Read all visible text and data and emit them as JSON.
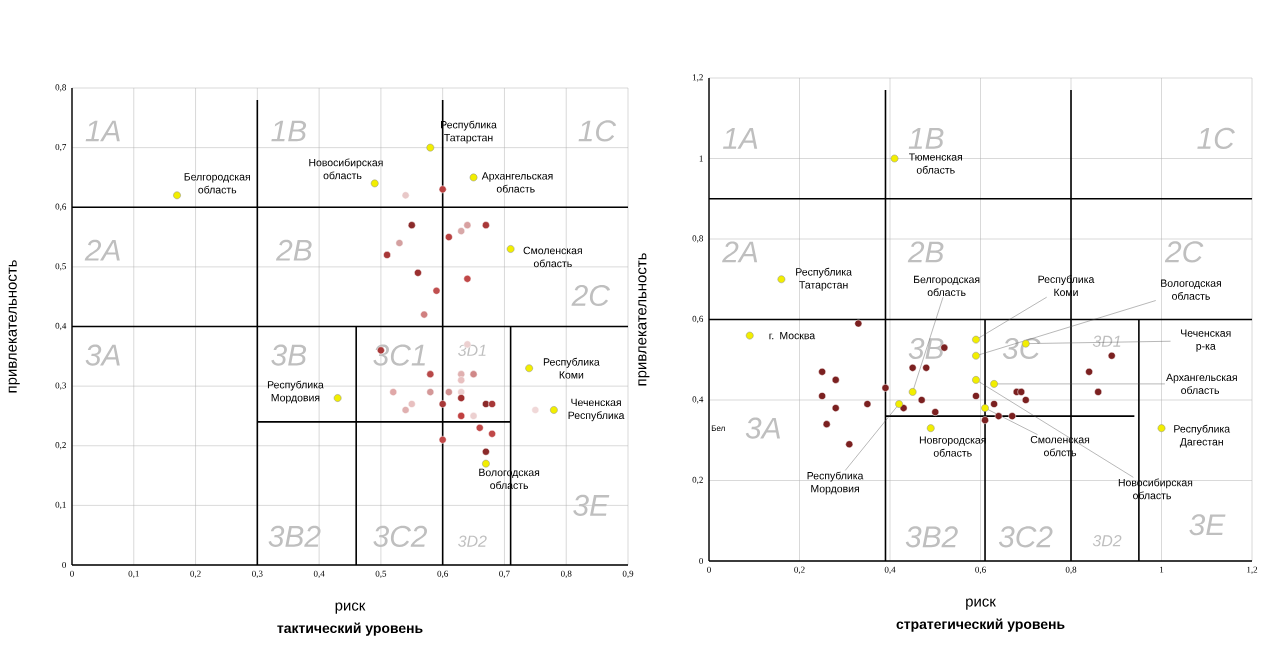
{
  "chart_data": [
    {
      "type": "scatter",
      "title": "тактический уровень",
      "xlabel": "риск",
      "ylabel": "привлекательность",
      "xlim": [
        0,
        0.9
      ],
      "ylim": [
        0,
        0.8
      ],
      "xticks": [
        0,
        {
          "value": 0.1,
          "label": "0,1"
        },
        {
          "value": 0.2,
          "label": "0,2"
        },
        {
          "value": 0.3,
          "label": "0,3"
        },
        {
          "value": 0.4,
          "label": "0,4"
        },
        {
          "value": 0.5,
          "label": "0,5"
        },
        {
          "value": 0.6,
          "label": "0,6"
        },
        {
          "value": 0.7,
          "label": "0,7"
        },
        {
          "value": 0.8,
          "label": "0,8"
        },
        {
          "value": 0.9,
          "label": "0,9"
        }
      ],
      "yticks": [
        0,
        {
          "value": 0.1,
          "label": "0,1"
        },
        {
          "value": 0.2,
          "label": "0,2"
        },
        {
          "value": 0.3,
          "label": "0,3"
        },
        {
          "value": 0.4,
          "label": "0,4"
        },
        {
          "value": 0.5,
          "label": "0,5"
        },
        {
          "value": 0.6,
          "label": "0,6"
        },
        {
          "value": 0.7,
          "label": "0,7"
        },
        {
          "value": 0.8,
          "label": "0,8"
        }
      ],
      "grid": true,
      "marker": "circle",
      "series": [
        {
          "x": [
            0.54,
            0.6,
            0.55,
            0.67,
            0.64,
            0.63,
            0.61,
            0.53,
            0.51,
            0.56,
            0.64,
            0.59,
            0.57,
            0.5,
            0.64,
            0.58,
            0.63,
            0.65,
            0.63,
            0.52,
            0.58,
            0.61,
            0.63,
            0.63,
            0.6,
            0.55,
            0.54,
            0.67,
            0.68,
            0.63,
            0.65,
            0.66,
            0.68,
            0.6,
            0.67,
            0.75
          ],
          "values": [
            0.62,
            0.63,
            0.57,
            0.57,
            0.57,
            0.56,
            0.55,
            0.54,
            0.52,
            0.49,
            0.48,
            0.46,
            0.42,
            0.36,
            0.37,
            0.32,
            0.32,
            0.32,
            0.31,
            0.29,
            0.29,
            0.29,
            0.29,
            0.28,
            0.27,
            0.27,
            0.26,
            0.27,
            0.27,
            0.25,
            0.25,
            0.23,
            0.22,
            0.21,
            0.19,
            0.26
          ],
          "colors": [
            "#e8c8c8",
            "#b84040",
            "#8b2a2a",
            "#a83838",
            "#d8a0a0",
            "#d8a8a8",
            "#b84040",
            "#d4a0a0",
            "#a83838",
            "#9b3030",
            "#c04848",
            "#c05050",
            "#d08080",
            "#a83838",
            "#ecd0d0",
            "#b84848",
            "#e0b0b0",
            "#d08888",
            "#e8c0c0",
            "#e0a8a8",
            "#d49898",
            "#d09090",
            "#ecd0d0",
            "#a03030",
            "#a83838",
            "#e8c0c0",
            "#e0b0b0",
            "#8b2a2a",
            "#a83838",
            "#c04040",
            "#ecd0d0",
            "#c04848",
            "#c04848",
            "#c04848",
            "#8b2a2a",
            "#f0d8d8"
          ]
        },
        {
          "color": "#f2ee00",
          "x": [
            0.17,
            0.49,
            0.58,
            0.65,
            0.71,
            0.74,
            0.78,
            0.43,
            0.67
          ],
          "values": [
            0.62,
            0.64,
            0.7,
            0.65,
            0.53,
            0.33,
            0.26,
            0.28,
            0.17
          ]
        },
        {
          "type": "line",
          "color": "#000000",
          "marker": "none",
          "x": [
            0.3,
            0.3
          ],
          "values": [
            0,
            0.78
          ]
        },
        {
          "type": "line",
          "color": "#000000",
          "marker": "none",
          "x": [
            0.6,
            0.6
          ],
          "values": [
            0,
            0.78
          ]
        },
        {
          "type": "line",
          "color": "#000000",
          "marker": "none",
          "x": [
            0,
            0.9
          ],
          "values": [
            0.6,
            0.6
          ]
        },
        {
          "type": "line",
          "color": "#000000",
          "marker": "none",
          "x": [
            0,
            0.9
          ],
          "values": [
            0.4,
            0.4
          ]
        },
        {
          "type": "line",
          "color": "#000000",
          "marker": "none",
          "x": [
            0.46,
            0.46
          ],
          "values": [
            0,
            0.4
          ]
        },
        {
          "type": "line",
          "color": "#000000",
          "marker": "none",
          "x": [
            0.71,
            0.71
          ],
          "values": [
            0,
            0.4
          ]
        },
        {
          "type": "line",
          "color": "#000000",
          "marker": "none",
          "x": [
            0.3,
            0.71
          ],
          "values": [
            0.24,
            0.24
          ]
        }
      ],
      "annotations": [
        "1A",
        "1B",
        "1C",
        "2A",
        "2B",
        "2C",
        "3A",
        "3B",
        "3C1",
        "3D1",
        "3B2",
        "3C2",
        "3D2",
        "3E",
        {
          "text": "Белгородская область",
          "x": 0.17,
          "y": 0.62
        },
        {
          "text": "Новосибирская область",
          "x": 0.49,
          "y": 0.64
        },
        {
          "text": "Республика Татарстан",
          "x": 0.58,
          "y": 0.7
        },
        {
          "text": "Архангельская область",
          "x": 0.65,
          "y": 0.65
        },
        {
          "text": "Смоленская область",
          "x": 0.71,
          "y": 0.53
        },
        {
          "text": "Республика Коми",
          "x": 0.74,
          "y": 0.33
        },
        {
          "text": "Чеченская Республика",
          "x": 0.78,
          "y": 0.26
        },
        {
          "text": "Республика Мордовия",
          "x": 0.43,
          "y": 0.28
        },
        {
          "text": "Вологодская область",
          "x": 0.67,
          "y": 0.17
        }
      ]
    },
    {
      "type": "scatter",
      "title": "стратегический уровень",
      "xlabel": "риск",
      "ylabel": "привлекательность",
      "xlim": [
        0,
        1.2
      ],
      "ylim": [
        0,
        1.2
      ],
      "xticks": [
        0,
        {
          "value": 0.2,
          "label": "0,2"
        },
        {
          "value": 0.4,
          "label": "0,4"
        },
        {
          "value": 0.6,
          "label": "0,6"
        },
        {
          "value": 0.8,
          "label": "0,8"
        },
        1,
        {
          "value": 1.2,
          "label": "1,2"
        }
      ],
      "yticks": [
        0,
        {
          "value": 0.2,
          "label": "0,2"
        },
        {
          "value": 0.4,
          "label": "0,4"
        },
        {
          "value": 0.6,
          "label": "0,6"
        },
        {
          "value": 0.8,
          "label": "0,8"
        },
        1,
        {
          "value": 1.2,
          "label": "1,2"
        }
      ],
      "grid": true,
      "marker": "circle",
      "series": [
        {
          "color": "#7b2020",
          "x": [
            0.33,
            0.25,
            0.28,
            0.25,
            0.28,
            0.26,
            0.31,
            0.35,
            0.39,
            0.43,
            0.45,
            0.48,
            0.47,
            0.5,
            0.52,
            0.59,
            0.61,
            0.63,
            0.64,
            0.67,
            0.68,
            0.69,
            0.7,
            0.84,
            0.86,
            0.89
          ],
          "values": [
            0.59,
            0.47,
            0.45,
            0.41,
            0.38,
            0.34,
            0.29,
            0.39,
            0.43,
            0.38,
            0.48,
            0.48,
            0.4,
            0.37,
            0.53,
            0.41,
            0.35,
            0.39,
            0.36,
            0.36,
            0.42,
            0.42,
            0.4,
            0.47,
            0.42,
            0.51
          ]
        },
        {
          "color": "#f2ee00",
          "x": [
            0.09,
            0.16,
            0.41,
            0.42,
            0.45,
            0.49,
            0.59,
            0.59,
            0.59,
            0.63,
            0.61,
            0.7,
            1.0
          ],
          "values": [
            0.56,
            0.7,
            1.0,
            0.39,
            0.42,
            0.33,
            0.55,
            0.51,
            0.45,
            0.44,
            0.38,
            0.54,
            0.33
          ]
        },
        {
          "type": "line",
          "color": "#000000",
          "marker": "none",
          "x": [
            0.39,
            0.39
          ],
          "values": [
            0,
            1.17
          ]
        },
        {
          "type": "line",
          "color": "#000000",
          "marker": "none",
          "x": [
            0.8,
            0.8
          ],
          "values": [
            0,
            1.17
          ]
        },
        {
          "type": "line",
          "color": "#000000",
          "marker": "none",
          "x": [
            0,
            1.2
          ],
          "values": [
            0.9,
            0.9
          ]
        },
        {
          "type": "line",
          "color": "#000000",
          "marker": "none",
          "x": [
            0,
            1.2
          ],
          "values": [
            0.6,
            0.6
          ]
        },
        {
          "type": "line",
          "color": "#000000",
          "marker": "none",
          "x": [
            0.61,
            0.61
          ],
          "values": [
            0,
            0.6
          ]
        },
        {
          "type": "line",
          "color": "#000000",
          "marker": "none",
          "x": [
            0.95,
            0.95
          ],
          "values": [
            0,
            0.6
          ]
        },
        {
          "type": "line",
          "color": "#000000",
          "marker": "none",
          "x": [
            0.39,
            0.94
          ],
          "values": [
            0.36,
            0.36
          ]
        }
      ],
      "annotations": [
        "1A",
        "1B",
        "1C",
        "2A",
        "2B",
        "2C",
        "3A",
        "3B",
        "3C",
        "3D1",
        "3B2",
        "3C2",
        "3D2",
        "3E",
        "Бел",
        {
          "text": "Тюменская область",
          "x": 0.41,
          "y": 1.0
        },
        {
          "text": "Республика Татарстан",
          "x": 0.16,
          "y": 0.7
        },
        {
          "text": "Белгородская область",
          "x": 0.45,
          "y": 0.42
        },
        {
          "text": "Республика Коми",
          "x": 0.59,
          "y": 0.55
        },
        {
          "text": "Вологодская область",
          "x": 0.59,
          "y": 0.51
        },
        {
          "text": "г. Москва",
          "x": 0.09,
          "y": 0.56
        },
        {
          "text": "Чеченская р-ка",
          "x": 0.7,
          "y": 0.54
        },
        {
          "text": "Архангельская область",
          "x": 0.63,
          "y": 0.44
        },
        {
          "text": "Республика Дагестан",
          "x": 1.0,
          "y": 0.33
        },
        {
          "text": "Смоленская облсть",
          "x": 0.61,
          "y": 0.38
        },
        {
          "text": "Новгородская область",
          "x": 0.49,
          "y": 0.33
        },
        {
          "text": "Республика Мордовия",
          "x": 0.42,
          "y": 0.39
        },
        {
          "text": "Новосибирская область",
          "x": 0.59,
          "y": 0.45
        }
      ]
    }
  ]
}
